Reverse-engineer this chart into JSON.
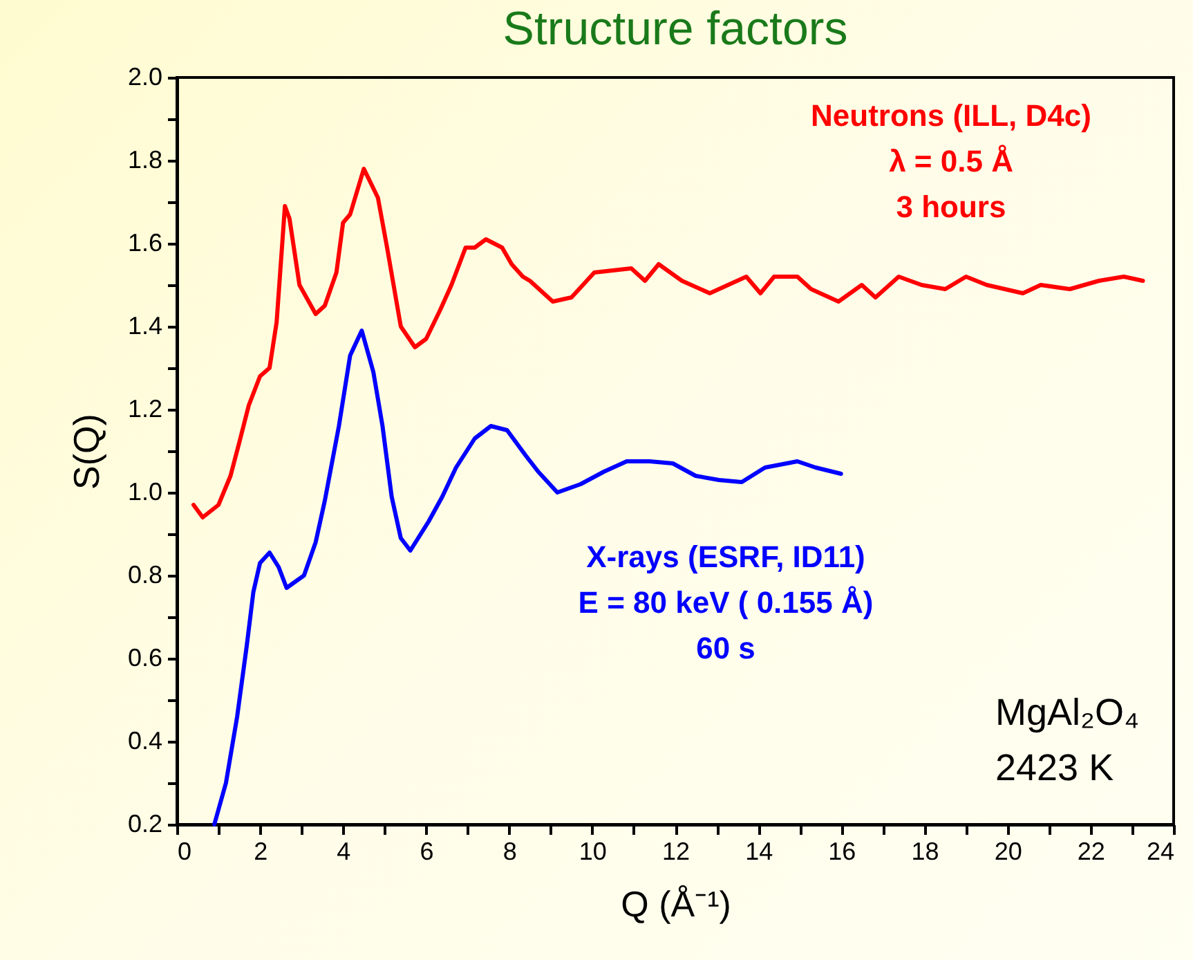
{
  "chart_data": {
    "type": "line",
    "title": "Structure factors",
    "xlabel": "Q (Å⁻¹)",
    "ylabel": "S(Q)",
    "xlim": [
      0,
      24
    ],
    "ylim": [
      0.2,
      2.0
    ],
    "xticks": [
      0,
      {
        "value": 1,
        "label": null
      },
      2,
      {
        "value": 3,
        "label": null
      },
      4,
      {
        "value": 5,
        "label": null
      },
      6,
      {
        "value": 7,
        "label": null
      },
      8,
      {
        "value": 9,
        "label": null
      },
      10,
      {
        "value": 11,
        "label": null
      },
      12,
      {
        "value": 13,
        "label": null
      },
      14,
      {
        "value": 15,
        "label": null
      },
      16,
      {
        "value": 17,
        "label": null
      },
      18,
      {
        "value": 19,
        "label": null
      },
      20,
      {
        "value": 21,
        "label": null
      },
      22,
      {
        "value": 23,
        "label": null
      },
      24
    ],
    "yticks": [
      0.2,
      {
        "value": 0.3,
        "label": null
      },
      0.4,
      {
        "value": 0.5,
        "label": null
      },
      0.6,
      {
        "value": 0.7,
        "label": null
      },
      0.8,
      {
        "value": 0.9,
        "label": null
      },
      {
        "value": 1.0,
        "label": "1.0"
      },
      {
        "value": 1.1,
        "label": null
      },
      1.2,
      {
        "value": 1.3,
        "label": null
      },
      1.4,
      {
        "value": 1.5,
        "label": null
      },
      1.6,
      {
        "value": 1.7,
        "label": null
      },
      1.8,
      {
        "value": 1.9,
        "label": null
      },
      {
        "value": 2.0,
        "label": "2.0"
      }
    ],
    "series": [
      {
        "color": "#ff0000",
        "x": [
          0.4,
          0.62,
          1.0,
          1.29,
          1.5,
          1.73,
          2.0,
          2.23,
          2.4,
          2.6,
          2.71,
          2.95,
          3.34,
          3.56,
          3.84,
          4.0,
          4.17,
          4.5,
          4.84,
          5.06,
          5.39,
          5.73,
          6.0,
          6.34,
          6.61,
          6.95,
          7.17,
          7.44,
          7.83,
          8.06,
          8.33,
          8.5,
          9.05,
          9.5,
          10.05,
          10.94,
          11.27,
          11.6,
          12.16,
          12.83,
          13.71,
          14.05,
          14.38,
          14.94,
          15.27,
          15.93,
          16.49,
          16.82,
          17.38,
          17.93,
          18.5,
          19.0,
          19.5,
          20.37,
          20.8,
          21.5,
          22.2,
          22.8,
          23.26
        ],
        "values": [
          0.97,
          0.94,
          0.97,
          1.04,
          1.12,
          1.21,
          1.28,
          1.3,
          1.41,
          1.69,
          1.66,
          1.5,
          1.43,
          1.45,
          1.53,
          1.65,
          1.67,
          1.78,
          1.71,
          1.59,
          1.4,
          1.35,
          1.37,
          1.44,
          1.5,
          1.59,
          1.59,
          1.61,
          1.59,
          1.55,
          1.52,
          1.51,
          1.46,
          1.47,
          1.53,
          1.54,
          1.51,
          1.55,
          1.51,
          1.48,
          1.52,
          1.48,
          1.52,
          1.52,
          1.49,
          1.46,
          1.5,
          1.47,
          1.52,
          1.5,
          1.49,
          1.52,
          1.5,
          1.48,
          1.5,
          1.49,
          1.51,
          1.52,
          1.51
        ]
      },
      {
        "color": "#0000ff",
        "x": [
          0.9,
          1.18,
          1.45,
          1.68,
          1.84,
          2.0,
          2.23,
          2.45,
          2.64,
          3.06,
          3.34,
          3.56,
          3.9,
          4.17,
          4.45,
          4.73,
          4.95,
          5.17,
          5.39,
          5.62,
          6.06,
          6.39,
          6.72,
          7.17,
          7.56,
          7.95,
          8.39,
          8.7,
          9.16,
          9.72,
          10.28,
          10.83,
          11.38,
          11.94,
          12.49,
          13.05,
          13.6,
          14.16,
          14.94,
          15.38,
          15.99
        ],
        "values": [
          0.2,
          0.3,
          0.46,
          0.63,
          0.76,
          0.83,
          0.855,
          0.82,
          0.77,
          0.8,
          0.88,
          0.98,
          1.16,
          1.33,
          1.39,
          1.29,
          1.16,
          0.99,
          0.89,
          0.86,
          0.93,
          0.99,
          1.06,
          1.13,
          1.16,
          1.15,
          1.09,
          1.05,
          1.0,
          1.02,
          1.05,
          1.075,
          1.075,
          1.07,
          1.04,
          1.03,
          1.025,
          1.06,
          1.075,
          1.06,
          1.045
        ]
      }
    ],
    "annotations": [
      "Neutrons (ILL, D4c)\nλ = 0.5 Å\n3 hours",
      "X-rays (ESRF, ID11)\nE = 80 keV ( 0.155 Å)\n60 s",
      "MgAl₂O₄\n2423 K"
    ]
  }
}
